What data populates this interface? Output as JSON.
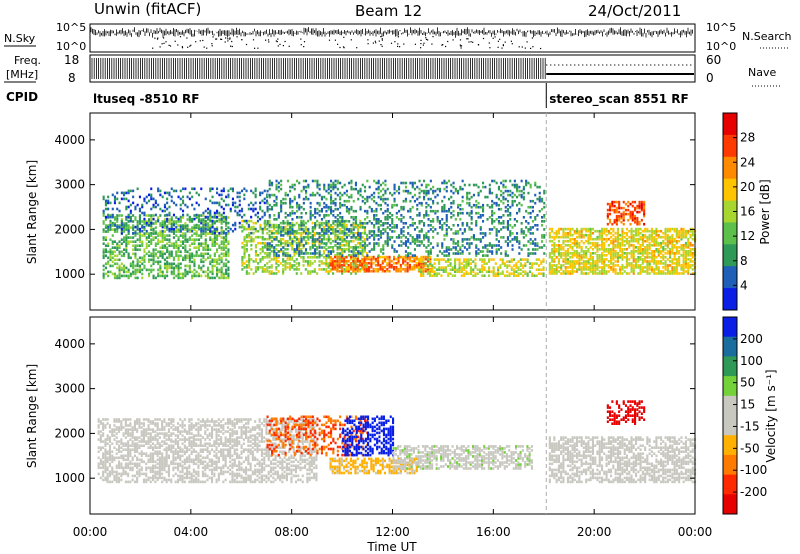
{
  "header": {
    "station": "Unwin (fitACF)",
    "beam": "Beam 12",
    "date": "24/Oct/2011"
  },
  "panel_labels": {
    "nsky": "N.Sky",
    "nsearch": "N.Search",
    "freq_line1": "Freq.",
    "freq_line2": "[MHz]",
    "nave": "Nave",
    "cpid": "CPID"
  },
  "noise_axis": {
    "ticks": [
      "10^5",
      "10^0"
    ],
    "right_ticks": [
      "10^5",
      "10^0"
    ]
  },
  "freq_axis": {
    "left_ticks": [
      "18",
      "8"
    ],
    "right_ticks": [
      "60",
      "0"
    ]
  },
  "cpid_segments": [
    {
      "label": "ltuseq -8510 RF",
      "start_hour": 0,
      "end_hour": 18.1
    },
    {
      "label": "stereo_scan 8551 RF",
      "start_hour": 18.1,
      "end_hour": 24
    }
  ],
  "colors": {
    "power": [
      "#0a1fe6",
      "#1f5fb8",
      "#2f9a57",
      "#5cc04a",
      "#a8d630",
      "#ffc400",
      "#ff8a00",
      "#ff3a00",
      "#e60000"
    ],
    "velocity": [
      "#0a1fe6",
      "#1a6e9e",
      "#2f9a57",
      "#73d13a",
      "#c8c8c0",
      "#c8c8c0",
      "#ffb000",
      "#ff7a00",
      "#ff2a00",
      "#e60000"
    ]
  },
  "chart_data": [
    {
      "type": "heatmap",
      "title": "",
      "quantity": "Power",
      "xlabel": "",
      "ylabel": "Slant Range [km]",
      "xlim": [
        0,
        24
      ],
      "ylim": [
        200,
        4600
      ],
      "yticks": [
        "1000",
        "2000",
        "3000",
        "4000"
      ],
      "colorbar": {
        "label": "Power [dB]",
        "ticks": [
          "4",
          "8",
          "12",
          "16",
          "20",
          "24",
          "28"
        ],
        "range": [
          0,
          32
        ]
      },
      "regions": [
        {
          "t0": 0.5,
          "t1": 5.5,
          "r0": 900,
          "r1": 2300,
          "value": 12,
          "density": 0.5
        },
        {
          "t0": 0.5,
          "t1": 7.0,
          "r0": 1900,
          "r1": 2900,
          "value": 6,
          "density": 0.25
        },
        {
          "t0": 6.0,
          "t1": 11.0,
          "r0": 1000,
          "r1": 2200,
          "value": 15,
          "density": 0.45
        },
        {
          "t0": 9.5,
          "t1": 13.5,
          "r0": 1050,
          "r1": 1400,
          "value": 24,
          "density": 0.7
        },
        {
          "t0": 13.0,
          "t1": 18.0,
          "r0": 950,
          "r1": 1350,
          "value": 17,
          "density": 0.55
        },
        {
          "t0": 7.0,
          "t1": 18.0,
          "r0": 1400,
          "r1": 3100,
          "value": 8,
          "density": 0.3
        },
        {
          "t0": 18.2,
          "t1": 24.0,
          "r0": 1000,
          "r1": 2000,
          "value": 18,
          "density": 0.65
        },
        {
          "t0": 20.5,
          "t1": 22.0,
          "r0": 2100,
          "r1": 2600,
          "value": 26,
          "density": 0.55
        }
      ]
    },
    {
      "type": "heatmap",
      "title": "",
      "quantity": "Velocity",
      "xlabel": "Time UT",
      "ylabel": "Slant Range [km]",
      "xlim": [
        0,
        24
      ],
      "ylim": [
        200,
        4600
      ],
      "xticks": [
        "00:00",
        "04:00",
        "08:00",
        "12:00",
        "16:00",
        "20:00",
        "00:00"
      ],
      "yticks": [
        "1000",
        "2000",
        "3000",
        "4000"
      ],
      "colorbar": {
        "label": "Velocity [m s⁻¹]",
        "ticks": [
          "200",
          "100",
          "50",
          "15",
          "-15",
          "-50",
          "-100",
          "-200"
        ],
        "range": [
          250,
          -250
        ]
      },
      "regions": [
        {
          "t0": 0.3,
          "t1": 9.0,
          "r0": 900,
          "r1": 2300,
          "value": 0,
          "density": 0.55
        },
        {
          "t0": 7.0,
          "t1": 11.0,
          "r0": 1500,
          "r1": 2400,
          "value": -150,
          "density": 0.35
        },
        {
          "t0": 10.0,
          "t1": 12.0,
          "r0": 1500,
          "r1": 2400,
          "value": 220,
          "density": 0.5
        },
        {
          "t0": 9.5,
          "t1": 13.0,
          "r0": 1100,
          "r1": 1450,
          "value": -60,
          "density": 0.6
        },
        {
          "t0": 12.0,
          "t1": 17.5,
          "r0": 1200,
          "r1": 1700,
          "value": 35,
          "density": 0.6
        },
        {
          "t0": 18.2,
          "t1": 24.0,
          "r0": 900,
          "r1": 1900,
          "value": 0,
          "density": 0.6
        },
        {
          "t0": 20.5,
          "t1": 22.0,
          "r0": 2200,
          "r1": 2700,
          "value": -220,
          "density": 0.45
        }
      ]
    }
  ]
}
